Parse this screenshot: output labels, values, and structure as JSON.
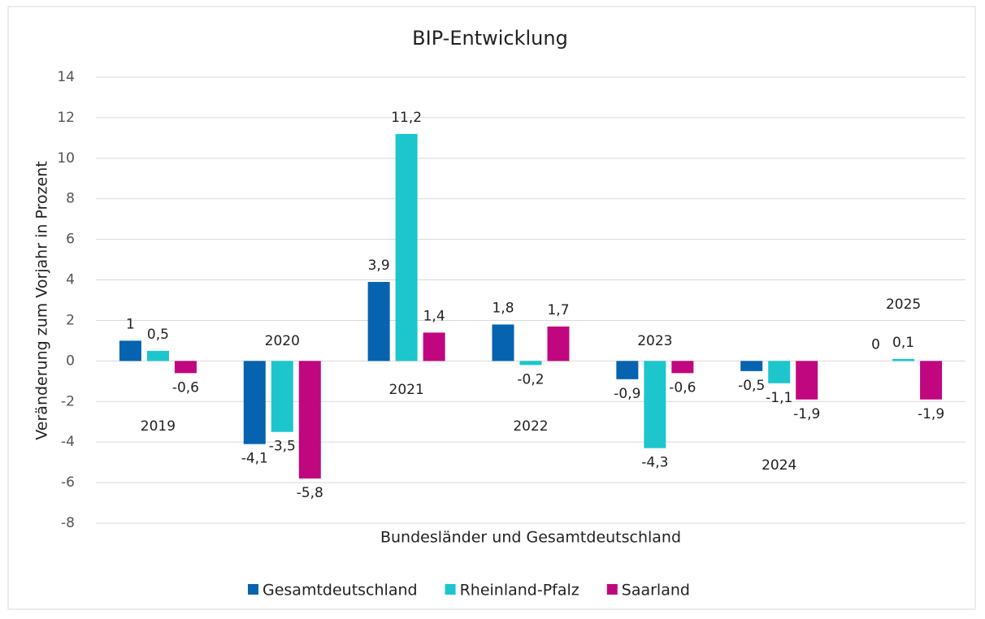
{
  "chart_data": {
    "type": "bar",
    "title": "BIP-Entwicklung",
    "y_label": "Veränderung zum Vorjahr in Prozent",
    "x_label": "Bundesländer und Gesamtdeutschland",
    "categories": [
      "2019",
      "2020",
      "2021",
      "2022",
      "2023",
      "2024",
      "2025"
    ],
    "series": [
      {
        "name": "Gesamtdeutschland",
        "color": "#0563b0",
        "values": [
          1,
          -4.1,
          3.9,
          1.8,
          -0.9,
          -0.5,
          0
        ],
        "value_labels": [
          "1",
          "-4,1",
          "3,9",
          "1,8",
          "-0,9",
          "-0,5",
          "0"
        ]
      },
      {
        "name": "Rheinland-Pfalz",
        "color": "#1cc6cc",
        "values": [
          0.5,
          -3.5,
          11.2,
          -0.2,
          -4.3,
          -1.1,
          0.1
        ],
        "value_labels": [
          "0,5",
          "-3,5",
          "11,2",
          "-0,2",
          "-4,3",
          "-1,1",
          "0,1"
        ]
      },
      {
        "name": "Saarland",
        "color": "#c0077f",
        "values": [
          -0.6,
          -5.8,
          1.4,
          1.7,
          -0.6,
          -1.9,
          -1.9
        ],
        "value_labels": [
          "-0,6",
          "-5,8",
          "1,4",
          "1,7",
          "-0,6",
          "-1,9",
          "-1,9"
        ]
      }
    ],
    "ylim": [
      -8,
      14
    ],
    "yticks": [
      -8,
      -6,
      -4,
      -2,
      0,
      2,
      4,
      6,
      8,
      10,
      12,
      14
    ],
    "grid": true,
    "legend": "bottom"
  }
}
